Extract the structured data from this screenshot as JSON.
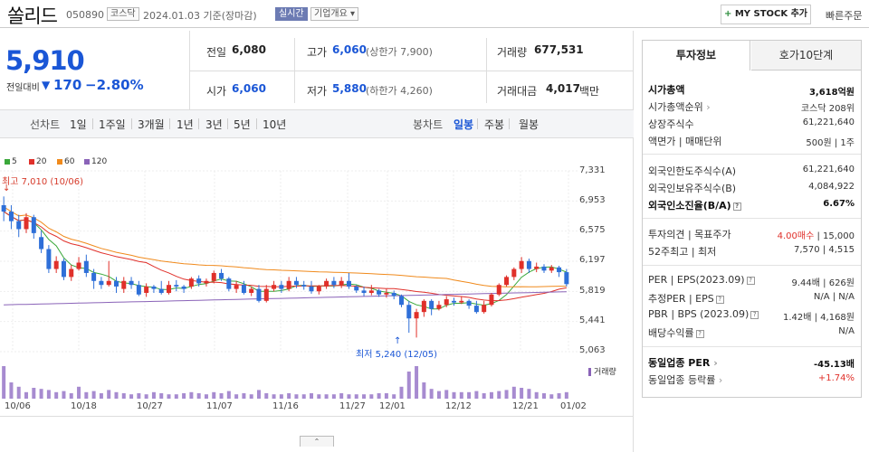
{
  "header": {
    "name": "쏠리드",
    "code": "050890",
    "market": "코스닥",
    "date": "2024.01.03 기준(장마감)",
    "realtime": "실시간",
    "overview": "기업개요",
    "mystock": "MY STOCK 추가",
    "quick_order": "빠른주문"
  },
  "quote": {
    "price": "5,910",
    "prev_label": "전일대비",
    "change": "170",
    "change_pct": "−2.80%",
    "prev_close_label": "전일",
    "prev_close": "6,080",
    "high_label": "고가",
    "high": "6,060",
    "upper_limit": "(상한가 7,900)",
    "volume_label": "거래량",
    "volume": "677,531",
    "open_label": "시가",
    "open": "6,060",
    "low_label": "저가",
    "low": "5,880",
    "lower_limit": "(하한가 4,260)",
    "amount_label": "거래대금",
    "amount": "4,017",
    "amount_unit": "백만"
  },
  "chart_controls": {
    "line_label": "선차트",
    "periods": [
      "1일",
      "1주일",
      "3개월",
      "1년",
      "3년",
      "5년",
      "10년"
    ],
    "candle_label": "봉차트",
    "candle_periods": [
      "일봉",
      "주봉",
      "월봉"
    ]
  },
  "chart_data": {
    "type": "candlestick",
    "legend": [
      {
        "name": "5",
        "color": "#3aa83a"
      },
      {
        "name": "20",
        "color": "#e0302a"
      },
      {
        "name": "60",
        "color": "#f08a1c"
      },
      {
        "name": "120",
        "color": "#8a63b8"
      }
    ],
    "y_ticks": [
      "7,331",
      "6,953",
      "6,575",
      "6,197",
      "5,819",
      "5,441",
      "5,063"
    ],
    "ylim": [
      5063,
      7331
    ],
    "x_ticks": [
      "10/06",
      "10/18",
      "10/27",
      "11/07",
      "11/16",
      "11/27",
      "12/01",
      "12/12",
      "12/21",
      "01/02"
    ],
    "high_label": "최고 7,010 (10/06)",
    "low_label": "최저 5,240 (12/05)",
    "volume_label": "거래량",
    "candles": [
      [
        6900,
        6820,
        7010,
        6700
      ],
      [
        6820,
        6700,
        6900,
        6600
      ],
      [
        6700,
        6600,
        6780,
        6500
      ],
      [
        6600,
        6750,
        6800,
        6550
      ],
      [
        6750,
        6550,
        6780,
        6480
      ],
      [
        6500,
        6350,
        6580,
        6300
      ],
      [
        6350,
        6100,
        6400,
        6050
      ],
      [
        6100,
        6200,
        6260,
        6050
      ],
      [
        6200,
        6000,
        6230,
        5960
      ],
      [
        6000,
        6100,
        6150,
        5950
      ],
      [
        6100,
        6180,
        6250,
        6080
      ],
      [
        6200,
        6050,
        6280,
        6000
      ],
      [
        6050,
        5950,
        6100,
        5850
      ],
      [
        5950,
        5900,
        6000,
        5850
      ],
      [
        5900,
        5950,
        6200,
        5880
      ],
      [
        5950,
        5880,
        6000,
        5800
      ],
      [
        5850,
        5950,
        6000,
        5800
      ],
      [
        5950,
        5900,
        6000,
        5850
      ],
      [
        5900,
        5780,
        5950,
        5760
      ],
      [
        5800,
        5880,
        5920,
        5750
      ],
      [
        5880,
        5850,
        5900,
        5800
      ],
      [
        5850,
        5800,
        5950,
        5780
      ],
      [
        5800,
        5900,
        5950,
        5780
      ],
      [
        5900,
        5880,
        5960,
        5820
      ],
      [
        5880,
        5850,
        5900,
        5800
      ],
      [
        5880,
        5980,
        6000,
        5850
      ],
      [
        5980,
        5920,
        6020,
        5880
      ],
      [
        5920,
        5950,
        5980,
        5880
      ],
      [
        5950,
        6050,
        6080,
        5920
      ],
      [
        6050,
        5980,
        6100,
        5950
      ],
      [
        5980,
        5850,
        6000,
        5820
      ],
      [
        5850,
        5900,
        5950,
        5800
      ],
      [
        5900,
        5800,
        5950,
        5780
      ],
      [
        5800,
        5850,
        5880,
        5760
      ],
      [
        5850,
        5700,
        5900,
        5680
      ],
      [
        5700,
        5850,
        5900,
        5680
      ],
      [
        5850,
        5900,
        5950,
        5820
      ],
      [
        5900,
        5850,
        5950,
        5800
      ],
      [
        5850,
        5950,
        6000,
        5820
      ],
      [
        5950,
        5900,
        6000,
        5860
      ],
      [
        5900,
        5880,
        5950,
        5840
      ],
      [
        5880,
        5820,
        5950,
        5790
      ],
      [
        5820,
        5880,
        5900,
        5780
      ],
      [
        5880,
        5950,
        5980,
        5850
      ],
      [
        5950,
        5900,
        6000,
        5860
      ],
      [
        5900,
        5950,
        6000,
        5860
      ],
      [
        5950,
        5880,
        6050,
        5850
      ],
      [
        5880,
        5830,
        5900,
        5800
      ],
      [
        5830,
        5800,
        5880,
        5760
      ],
      [
        5800,
        5830,
        5900,
        5770
      ],
      [
        5830,
        5780,
        5850,
        5750
      ],
      [
        5780,
        5800,
        5850,
        5740
      ],
      [
        5800,
        5760,
        5830,
        5720
      ],
      [
        5760,
        5650,
        5780,
        5620
      ],
      [
        5650,
        5480,
        5700,
        5300
      ],
      [
        5480,
        5560,
        5600,
        5240
      ],
      [
        5560,
        5700,
        5720,
        5500
      ],
      [
        5700,
        5600,
        5720,
        5520
      ],
      [
        5600,
        5650,
        5700,
        5580
      ],
      [
        5650,
        5720,
        5760,
        5620
      ],
      [
        5700,
        5680,
        5740,
        5640
      ],
      [
        5680,
        5700,
        5760,
        5660
      ],
      [
        5700,
        5640,
        5720,
        5600
      ],
      [
        5640,
        5560,
        5700,
        5540
      ],
      [
        5560,
        5650,
        5700,
        5540
      ],
      [
        5650,
        5780,
        5800,
        5630
      ],
      [
        5780,
        5900,
        5920,
        5760
      ],
      [
        5900,
        6000,
        6020,
        5880
      ],
      [
        6000,
        6100,
        6120,
        5960
      ],
      [
        6100,
        6200,
        6250,
        6050
      ],
      [
        6200,
        6100,
        6230,
        6050
      ],
      [
        6100,
        6130,
        6180,
        6060
      ],
      [
        6130,
        6080,
        6160,
        6050
      ],
      [
        6080,
        6120,
        6150,
        6050
      ],
      [
        6120,
        6060,
        6140,
        6000
      ],
      [
        6060,
        5910,
        6100,
        5880
      ]
    ],
    "volumes": [
      60,
      30,
      22,
      12,
      20,
      18,
      16,
      12,
      14,
      10,
      22,
      12,
      14,
      10,
      16,
      12,
      10,
      8,
      10,
      8,
      12,
      10,
      8,
      8,
      10,
      12,
      10,
      8,
      12,
      10,
      14,
      8,
      10,
      8,
      16,
      10,
      8,
      8,
      10,
      8,
      8,
      10,
      8,
      8,
      8,
      10,
      8,
      8,
      8,
      8,
      10,
      10,
      8,
      22,
      50,
      60,
      30,
      18,
      14,
      16,
      12,
      12,
      12,
      14,
      10,
      12,
      14,
      16,
      22,
      20,
      18,
      12,
      10,
      8,
      10,
      12
    ]
  },
  "right_panel": {
    "tabs": [
      "투자정보",
      "호가10단계"
    ],
    "rows": [
      {
        "label": "시가총액",
        "value": "3,618억원",
        "bold": true
      },
      {
        "label": "시가총액순위",
        "value": "코스닥 208위"
      },
      {
        "label": "상장주식수",
        "value": "61,221,640"
      },
      {
        "label": "액면가 | 매매단위",
        "value": "500원 | 1주"
      },
      {
        "label": "외국인한도주식수(A)",
        "value": "61,221,640"
      },
      {
        "label": "외국인보유주식수(B)",
        "value": "4,084,922"
      },
      {
        "label": "외국인소진율(B/A)",
        "value": "6.67%",
        "bold": true
      },
      {
        "label": "투자의견 | 목표주가",
        "value": "4.00매수 | 15,000"
      },
      {
        "label": "52주최고 | 최저",
        "value": "7,570 | 4,515"
      },
      {
        "label": "PER | EPS(2023.09)",
        "value": "9.44배 | 626원"
      },
      {
        "label": "추정PER | EPS",
        "value": "N/A | N/A"
      },
      {
        "label": "PBR | BPS (2023.09)",
        "value": "1.42배 | 4,168원"
      },
      {
        "label": "배당수익률",
        "value": "N/A"
      },
      {
        "label": "동일업종 PER",
        "value": "-45.13배",
        "bold": true
      },
      {
        "label": "동일업종 등락률",
        "value": "+1.74%"
      }
    ]
  }
}
